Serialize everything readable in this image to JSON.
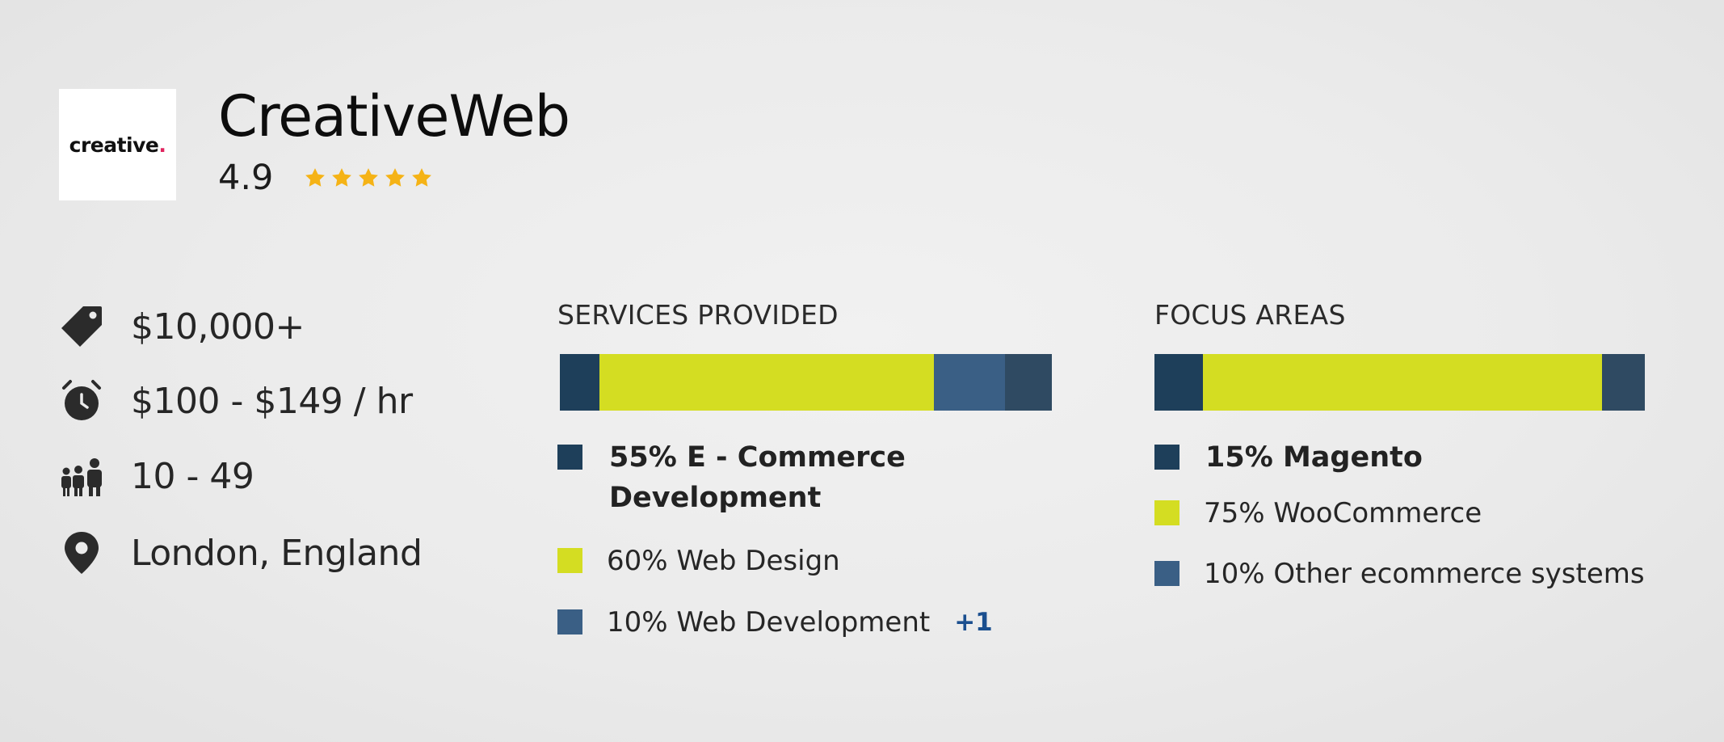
{
  "company": {
    "logo_text": "creative",
    "logo_dot": ".",
    "name": "CreativeWeb",
    "rating": "4.9",
    "star_rating": 5,
    "star_color": "#f5b316"
  },
  "info": [
    {
      "icon": "tag-icon",
      "text": "$10,000+"
    },
    {
      "icon": "alarm-clock-icon",
      "text": "$100 - $149 / hr"
    },
    {
      "icon": "people-icon",
      "text": "10 - 49"
    },
    {
      "icon": "location-pin-icon",
      "text": "London, England"
    }
  ],
  "services": {
    "title": "SERVICES PROVIDED",
    "legend": [
      {
        "text": "55% E - Commerce",
        "text2": "Development",
        "color": "#1e3f5a",
        "bold": true
      },
      {
        "text": "60%  Web Design",
        "color": "#d4dd22",
        "bold": false
      },
      {
        "text": "10% Web Development",
        "color": "#3a5f85",
        "bold": false,
        "more": "+1"
      }
    ],
    "bar_colors": [
      "#1e3f5a",
      "#d4dd22",
      "#3a5f85",
      "#2f4a62"
    ]
  },
  "focus": {
    "title": "FOCUS AREAS",
    "legend": [
      {
        "text": "15%  Magento",
        "color": "#1e3f5a",
        "bold": true
      },
      {
        "text": "75%  WooCommerce",
        "color": "#d4dd22",
        "bold": false
      },
      {
        "text": "10%  Other ecommerce systems",
        "color": "#3a5f85",
        "bold": false
      }
    ],
    "bar_colors": [
      "#1e3f5a",
      "#d4dd22",
      "#2f4a62"
    ]
  }
}
